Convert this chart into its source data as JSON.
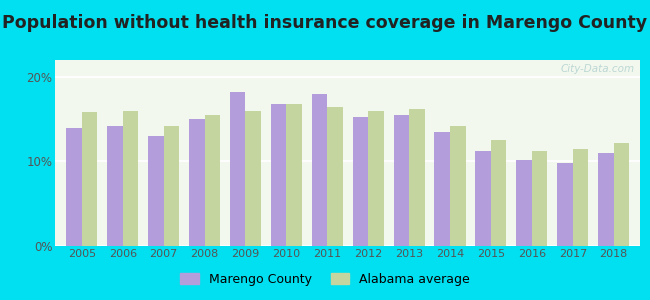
{
  "title": "Population without health insurance coverage in Marengo County",
  "years": [
    2005,
    2006,
    2007,
    2008,
    2009,
    2010,
    2011,
    2012,
    2013,
    2014,
    2015,
    2016,
    2017,
    2018
  ],
  "marengo": [
    14.0,
    14.2,
    13.0,
    15.0,
    18.2,
    16.8,
    18.0,
    15.2,
    15.5,
    13.5,
    11.2,
    10.2,
    9.8,
    11.0
  ],
  "alabama": [
    15.8,
    16.0,
    14.2,
    15.5,
    16.0,
    16.8,
    16.5,
    16.0,
    16.2,
    14.2,
    12.5,
    11.2,
    11.5,
    12.2
  ],
  "marengo_color": "#b39ddb",
  "alabama_color": "#c5d5a0",
  "background_outer": "#00e0f0",
  "background_inner": "#f2f8ee",
  "yticks": [
    0,
    10,
    20
  ],
  "ylim": [
    0,
    22
  ],
  "legend_labels": [
    "Marengo County",
    "Alabama average"
  ],
  "title_fontsize": 12.5,
  "bar_width": 0.38,
  "watermark": "City-Data.com"
}
